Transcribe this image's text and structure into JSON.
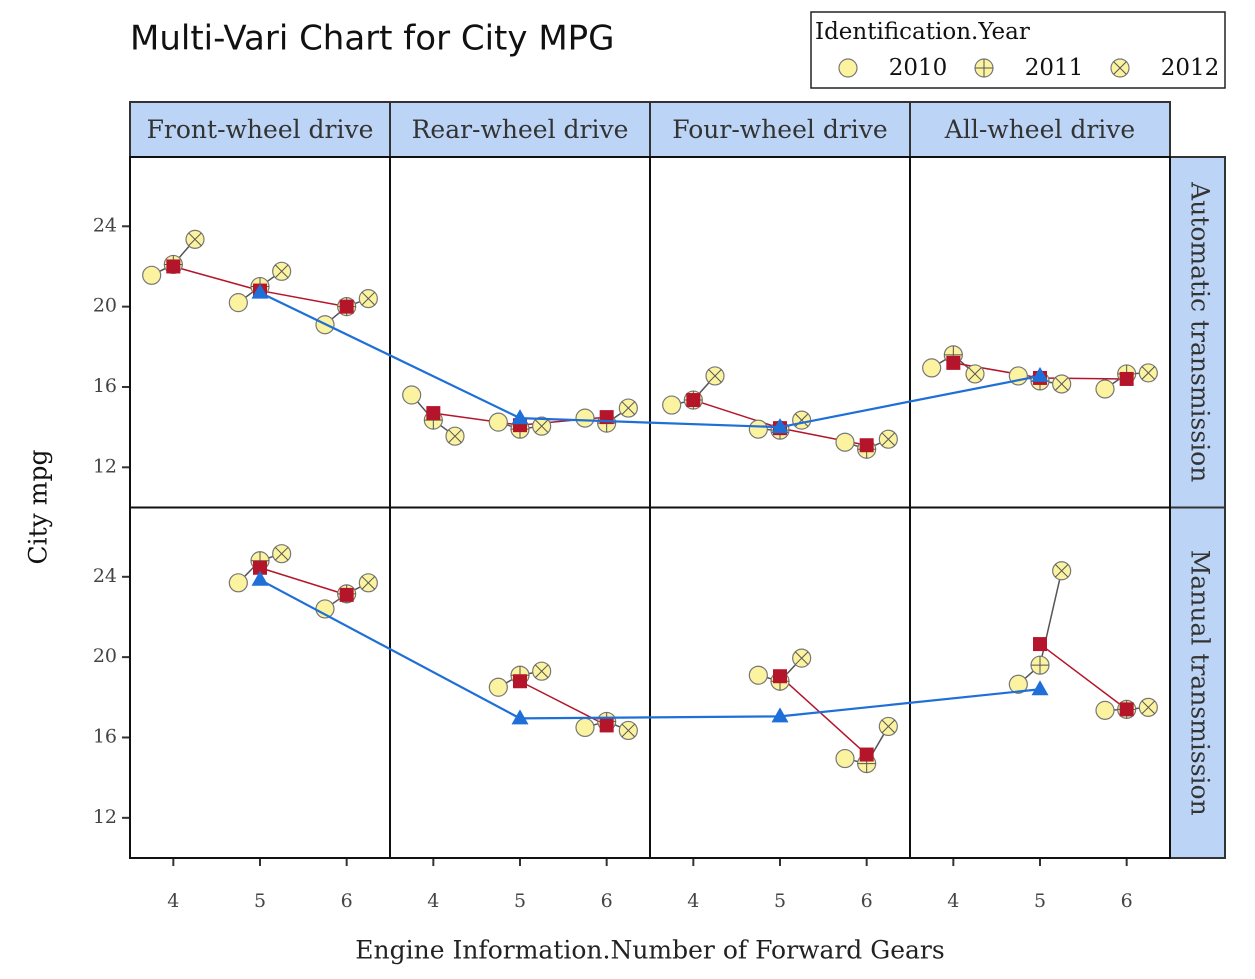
{
  "chart_data": {
    "type": "multi-vari",
    "title": "Multi-Vari Chart for City MPG",
    "x_label": "Engine Information.Number of Forward Gears",
    "y_label": "City mpg",
    "legend_title": "Identification.Year",
    "series": [
      {
        "name": "2010",
        "marker": "circle",
        "color": "#fbf3a0"
      },
      {
        "name": "2011",
        "marker": "plus",
        "color": "#fbf3a0"
      },
      {
        "name": "2012",
        "marker": "x",
        "color": "#fbf3a0"
      }
    ],
    "mean_color": "#b5152b",
    "overall_color": "#1f6fd8",
    "strip_color": "#bcd4f5",
    "x": [
      4,
      5,
      6
    ],
    "xlim": [
      3.5,
      6.5
    ],
    "ylim": [
      10,
      27.45
    ],
    "yticks": [
      12,
      16,
      20,
      24
    ],
    "columns": [
      "Front-wheel drive",
      "Rear-wheel drive",
      "Four-wheel drive",
      "All-wheel drive"
    ],
    "rows": [
      {
        "name": "Automatic transmission",
        "cells": [
          {
            "years": [
              [
                21.56,
                20.2,
                19.1
              ],
              [
                22.1,
                21.0,
                20.0
              ],
              [
                23.35,
                21.76,
                20.4
              ]
            ],
            "means": [
              22.0,
              20.8,
              20.0
            ],
            "overall_mean": 20.7
          },
          {
            "years": [
              [
                15.6,
                14.25,
                14.45
              ],
              [
                14.35,
                13.9,
                14.2
              ],
              [
                13.55,
                14.05,
                14.95
              ]
            ],
            "means": [
              14.7,
              14.1,
              14.5
            ],
            "overall_mean": 14.45
          },
          {
            "years": [
              [
                15.1,
                13.9,
                13.25
              ],
              [
                15.35,
                13.85,
                12.9
              ],
              [
                16.55,
                14.35,
                13.4
              ]
            ],
            "means": [
              15.35,
              13.95,
              13.1
            ],
            "overall_mean": 14.0
          },
          {
            "years": [
              [
                16.95,
                16.55,
                15.9
              ],
              [
                17.6,
                16.3,
                16.65
              ],
              [
                16.65,
                16.15,
                16.7
              ]
            ],
            "means": [
              17.2,
              16.45,
              16.4
            ],
            "overall_mean": 16.55
          }
        ]
      },
      {
        "name": "Manual transmission",
        "cells": [
          {
            "years": [
              [
                null,
                23.7,
                22.4
              ],
              [
                null,
                24.8,
                23.15
              ],
              [
                null,
                25.15,
                23.7
              ]
            ],
            "means": [
              null,
              24.45,
              23.1
            ],
            "overall_mean": 23.85
          },
          {
            "years": [
              [
                null,
                18.5,
                16.5
              ],
              [
                null,
                19.1,
                16.8
              ],
              [
                null,
                19.3,
                16.35
              ]
            ],
            "means": [
              null,
              18.8,
              16.6
            ],
            "overall_mean": 16.95
          },
          {
            "years": [
              [
                null,
                19.1,
                14.95
              ],
              [
                null,
                18.8,
                14.7
              ],
              [
                null,
                19.95,
                16.55
              ]
            ],
            "means": [
              null,
              19.05,
              15.15
            ],
            "overall_mean": 17.05
          },
          {
            "years": [
              [
                null,
                18.65,
                17.35
              ],
              [
                null,
                19.6,
                17.4
              ],
              [
                null,
                24.3,
                17.5
              ]
            ],
            "means": [
              null,
              20.65,
              17.4
            ],
            "overall_mean": 18.4
          }
        ]
      }
    ]
  }
}
